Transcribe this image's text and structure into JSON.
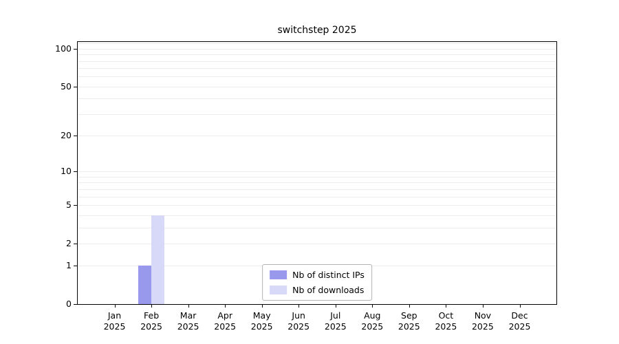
{
  "chart_data": {
    "type": "bar",
    "title": "switchstep 2025",
    "categories": [
      "Jan 2025",
      "Feb 2025",
      "Mar 2025",
      "Apr 2025",
      "May 2025",
      "Jun 2025",
      "Jul 2025",
      "Aug 2025",
      "Sep 2025",
      "Oct 2025",
      "Nov 2025",
      "Dec 2025"
    ],
    "series": [
      {
        "name": "Nb of distinct IPs",
        "color": "#9898ec",
        "values": [
          0,
          1,
          0,
          0,
          0,
          0,
          0,
          0,
          0,
          0,
          0,
          0
        ]
      },
      {
        "name": "Nb of downloads",
        "color": "#d8d8f8",
        "values": [
          0,
          4,
          0,
          0,
          0,
          0,
          0,
          0,
          0,
          0,
          0,
          0
        ]
      }
    ],
    "y_axis": {
      "scale": "log10(value+1)",
      "ticks": [
        0,
        1,
        2,
        5,
        10,
        20,
        50,
        100
      ],
      "minor_gridlines": [
        1,
        2,
        3,
        4,
        5,
        6,
        7,
        8,
        9,
        10,
        20,
        30,
        40,
        50,
        60,
        70,
        80,
        90,
        100,
        110
      ],
      "range_top_value": 113
    },
    "xlabel": "",
    "ylabel": "",
    "grid": "minor-horizontal",
    "legend_position": "bottom-center-inside"
  },
  "colors": {
    "background": "#ffffff",
    "gridline": "#ececec",
    "axis": "#000000",
    "legend_border": "#b3b3b3"
  }
}
